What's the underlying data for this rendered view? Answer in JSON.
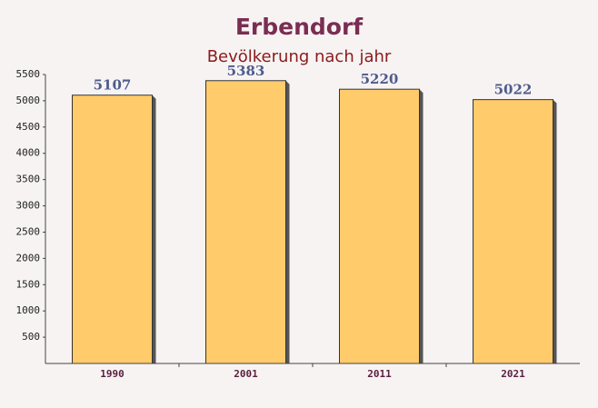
{
  "chart_data": {
    "type": "bar",
    "title": "Erbendorf",
    "subtitle": "Bevölkerung nach jahr",
    "categories": [
      "1990",
      "2001",
      "2011",
      "2021"
    ],
    "values": [
      5107,
      5383,
      5220,
      5022
    ],
    "color": "#ffc65c",
    "ylim": [
      0,
      5500
    ],
    "yticks": [
      500,
      1000,
      1500,
      2000,
      2500,
      3000,
      3500,
      4000,
      4500,
      5000,
      5500
    ],
    "grid": false
  }
}
